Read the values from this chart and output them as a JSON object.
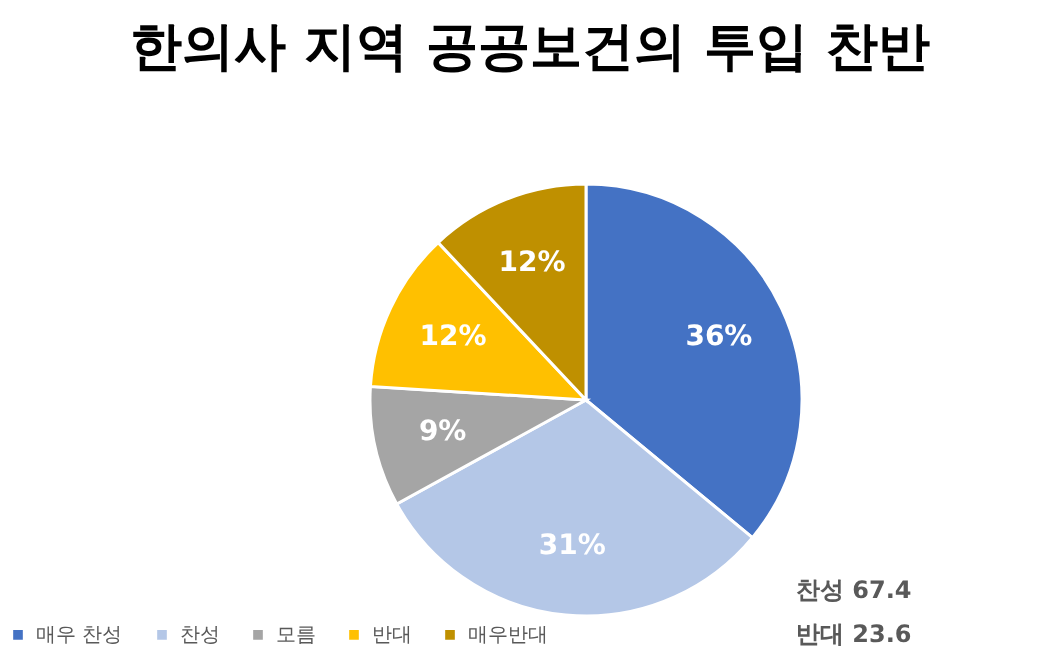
{
  "chart_data": {
    "type": "pie",
    "title": "한의사 지역 공공보건의 투입 찬반",
    "categories": [
      "매우 찬성",
      "찬성",
      "모름",
      "반대",
      "매우반대"
    ],
    "values": [
      36,
      31,
      9,
      12,
      12
    ],
    "value_labels": [
      "36%",
      "31%",
      "9%",
      "12%",
      "12%"
    ],
    "colors": [
      "#4472c4",
      "#b4c7e7",
      "#a5a5a5",
      "#ffc000",
      "#bf9000"
    ],
    "legend": "bottom left",
    "annotations": [
      "찬성 67.4",
      "반대 23.6"
    ]
  }
}
